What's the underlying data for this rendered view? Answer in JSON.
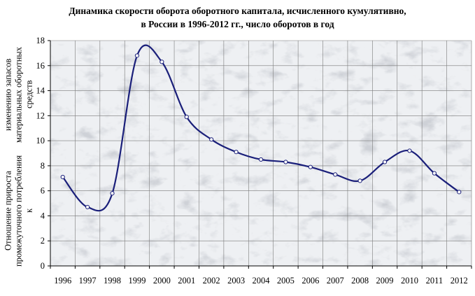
{
  "chart_data": {
    "type": "line",
    "title_line1": "Динамика скорости оборота оборотного капитала, исчисленного кумулятивно,",
    "title_line2": "в России в 1996-2012 гг., число оборотов в год",
    "ylabel_line1": "Отношение прироста промежуточного потребления к",
    "ylabel_line2": "изменению запасов материальных оборотных средств",
    "xlabel": "",
    "x": [
      "1996",
      "1997",
      "1998",
      "1999",
      "2000",
      "2001",
      "2002",
      "2003",
      "2004",
      "2005",
      "2006",
      "2007",
      "2008",
      "2009",
      "2010",
      "2011",
      "2012"
    ],
    "series": [
      {
        "values": [
          7.1,
          4.7,
          5.8,
          16.8,
          16.3,
          11.9,
          10.1,
          9.1,
          8.5,
          8.3,
          7.9,
          7.3,
          6.8,
          8.3,
          9.2,
          7.4,
          5.9
        ]
      }
    ],
    "ylim": [
      0,
      18
    ],
    "yticks": [
      "0",
      "2",
      "4",
      "6",
      "8",
      "10",
      "12",
      "14",
      "16",
      "18"
    ],
    "grid": true,
    "background": "marble",
    "colors": {
      "line": "#1a1f7a",
      "marker_fill": "#ffffff",
      "grid": "#7a7a7a",
      "axis": "#000000"
    }
  }
}
